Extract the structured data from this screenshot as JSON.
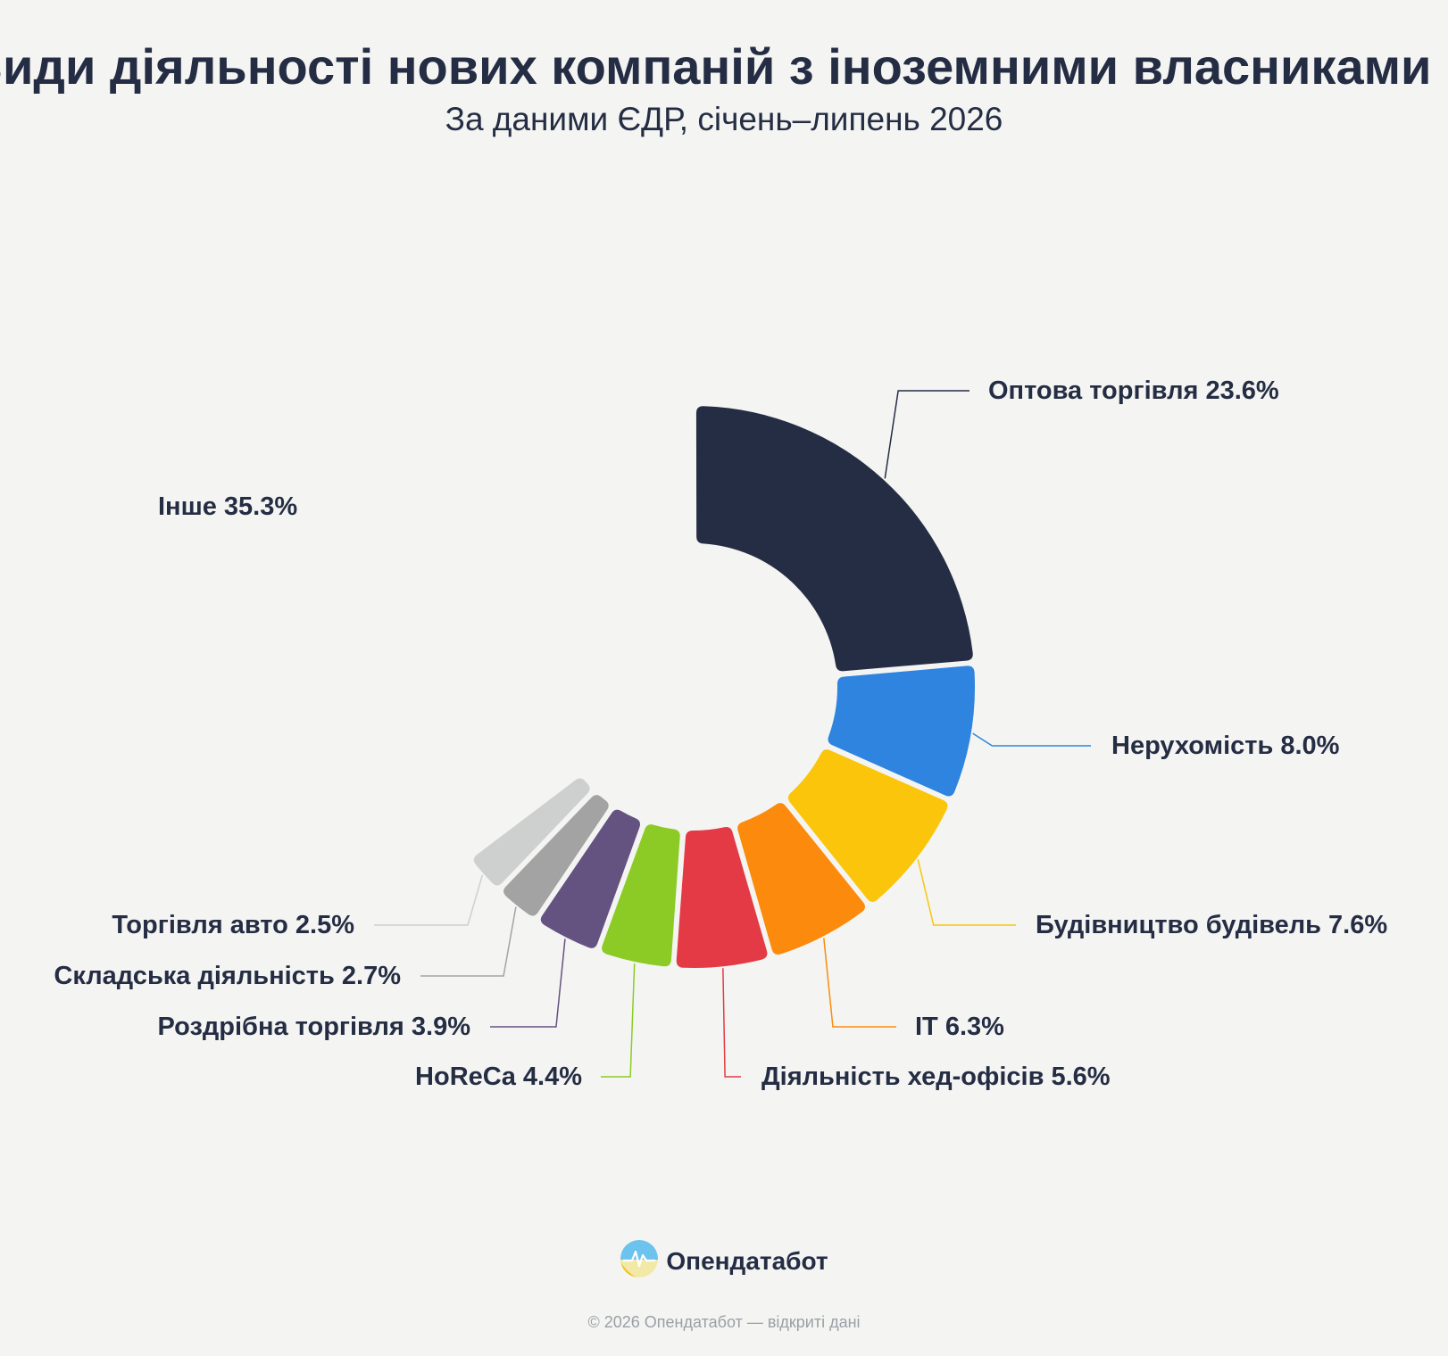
{
  "header": {
    "title": "Види діяльності нових компаній з іноземними власниками",
    "subtitle": "За даними ЄДР, січень–липень 2026"
  },
  "chart_data": {
    "type": "pie",
    "variant": "donut",
    "categories": [
      "Оптова торгівля",
      "Нерухомість",
      "Будівництво будівель",
      "IT",
      "Діяльність хед-офісів",
      "HoReCa",
      "Роздрібна торгівля",
      "Складська діяльність",
      "Торгівля авто",
      "Інше"
    ],
    "values": [
      23.6,
      8.0,
      7.6,
      6.3,
      5.6,
      4.4,
      3.9,
      2.7,
      2.5,
      35.3
    ],
    "labels": [
      "Оптова торгівля 23.6%",
      "Нерухомість 8.0%",
      "Будівництво будівель 7.6%",
      "IT 6.3%",
      "Діяльність хед-офісів 5.6%",
      "HoReCa 4.4%",
      "Роздрібна торгівля 3.9%",
      "Складська діяльність 2.7%",
      "Торгівля авто 2.5%",
      "Інше 35.3%"
    ],
    "colors": [
      "#252d44",
      "#2e84df",
      "#fac50b",
      "#fc8a0c",
      "#e33a45",
      "#8ccb26",
      "#645281",
      "#a3a3a3",
      "#cecfcf",
      "none"
    ],
    "unit": "%",
    "legend": "none"
  },
  "brand": {
    "name": "Опендатабот",
    "logo_icon": "opendatabot-logo-icon"
  },
  "footer": {
    "text": "© 2026 Опендатабот — відкриті дані"
  }
}
